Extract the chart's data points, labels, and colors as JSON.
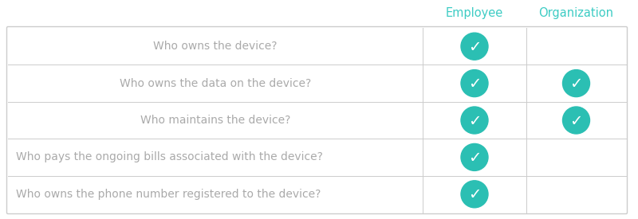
{
  "headers": [
    "",
    "Employee",
    "Organization"
  ],
  "rows": [
    "Who owns the device?",
    "Who owns the data on the device?",
    "Who maintains the device?",
    "Who pays the ongoing bills associated with the device?",
    "Who owns the phone number registered to the device?"
  ],
  "row_halign": [
    "center",
    "center",
    "center",
    "left",
    "left"
  ],
  "checkmarks": [
    [
      true,
      false
    ],
    [
      true,
      true
    ],
    [
      true,
      true
    ],
    [
      true,
      false
    ],
    [
      true,
      false
    ]
  ],
  "header_color": "#3dccc4",
  "check_color": "#2bbfb3",
  "text_color": "#aaaaaa",
  "border_color": "#cccccc",
  "bg_color": "#ffffff",
  "header_fontsize": 10.5,
  "row_fontsize": 10,
  "fig_width": 8.0,
  "fig_height": 2.75,
  "dpi": 100
}
